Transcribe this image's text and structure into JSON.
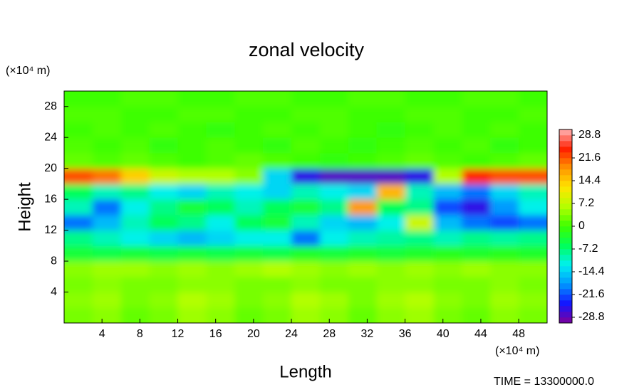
{
  "chart_data": {
    "type": "heatmap",
    "title": "zonal velocity",
    "xlabel": "Length",
    "ylabel": "Height",
    "xunit": "(×10⁴ m)",
    "yunit": "(×10⁴ m)",
    "annotation": "TIME = 13300000.0",
    "xlim": [
      0,
      51
    ],
    "ylim": [
      0,
      30
    ],
    "xticks": [
      4,
      8,
      12,
      16,
      20,
      24,
      28,
      32,
      36,
      40,
      44,
      48
    ],
    "yticks": [
      4,
      8,
      12,
      16,
      20,
      24,
      28
    ],
    "clim": [
      -30.6,
      30.6
    ],
    "cticks": [
      28.8,
      21.6,
      14.4,
      7.2,
      0,
      -7.2,
      -14.4,
      -21.6,
      -28.8
    ],
    "colors": [
      "#80009a",
      "#1414ff",
      "#0096ff",
      "#00f0f0",
      "#00ff5a",
      "#3cff00",
      "#b4ff00",
      "#ffe600",
      "#ff9600",
      "#ff1e00",
      "#ffb4b4"
    ],
    "x": [
      1.5,
      4.5,
      7.5,
      10.5,
      13.5,
      16.5,
      19.5,
      22.5,
      25.5,
      28.5,
      31.5,
      34.5,
      37.5,
      40.5,
      43.5,
      46.5,
      49.5
    ],
    "y": [
      1,
      3,
      5,
      7,
      9,
      11,
      13,
      15,
      17,
      19,
      21,
      23,
      25,
      27,
      29
    ],
    "z": [
      [
        3,
        4,
        2,
        3,
        5,
        4,
        2,
        3,
        5,
        4,
        2,
        4,
        5,
        3,
        2,
        4,
        3
      ],
      [
        4,
        5,
        3,
        4,
        6,
        5,
        3,
        4,
        6,
        5,
        3,
        5,
        6,
        4,
        3,
        5,
        4
      ],
      [
        3,
        4,
        3,
        3,
        4,
        4,
        3,
        3,
        4,
        3,
        3,
        4,
        4,
        3,
        3,
        4,
        3
      ],
      [
        4,
        5,
        5,
        4,
        5,
        4,
        5,
        6,
        5,
        4,
        5,
        4,
        5,
        4,
        5,
        4,
        4
      ],
      [
        -4,
        -5,
        -4,
        -5,
        -4,
        -5,
        -4,
        -5,
        -3,
        -4,
        -3,
        -4,
        -3,
        -2,
        -3,
        -2,
        -3
      ],
      [
        -8,
        -10,
        -12,
        -14,
        -16,
        -14,
        -12,
        -12,
        -20,
        -12,
        -10,
        -9,
        -8,
        -10,
        -8,
        -9,
        -8
      ],
      [
        -20,
        -16,
        -10,
        -6,
        -8,
        -12,
        -6,
        -4,
        -10,
        -14,
        -16,
        -12,
        8,
        -16,
        -20,
        -22,
        -20
      ],
      [
        -10,
        -20,
        -12,
        -8,
        -4,
        -6,
        -10,
        -6,
        -4,
        -8,
        18,
        -6,
        -8,
        -22,
        -26,
        -18,
        -12
      ],
      [
        -6,
        -10,
        -8,
        -12,
        -14,
        -10,
        -12,
        -14,
        -10,
        -12,
        -14,
        16,
        -10,
        -16,
        -20,
        -14,
        -10
      ],
      [
        22,
        20,
        14,
        8,
        6,
        6,
        4,
        -14,
        -26,
        -28,
        -28,
        -28,
        -26,
        6,
        24,
        22,
        22
      ],
      [
        2,
        1,
        2,
        1,
        0,
        1,
        2,
        1,
        0,
        -1,
        0,
        1,
        2,
        1,
        0,
        1,
        2
      ],
      [
        1,
        0,
        1,
        -1,
        0,
        1,
        0,
        -1,
        1,
        0,
        -1,
        0,
        1,
        0,
        1,
        -1,
        0
      ],
      [
        0,
        1,
        0,
        1,
        0,
        -1,
        0,
        1,
        0,
        1,
        0,
        -1,
        0,
        1,
        0,
        1,
        0
      ],
      [
        1,
        1,
        0,
        0,
        1,
        1,
        0,
        0,
        1,
        1,
        0,
        0,
        1,
        1,
        0,
        0,
        1
      ],
      [
        0,
        0,
        1,
        1,
        0,
        0,
        1,
        1,
        0,
        0,
        1,
        1,
        0,
        0,
        1,
        1,
        0
      ]
    ]
  }
}
